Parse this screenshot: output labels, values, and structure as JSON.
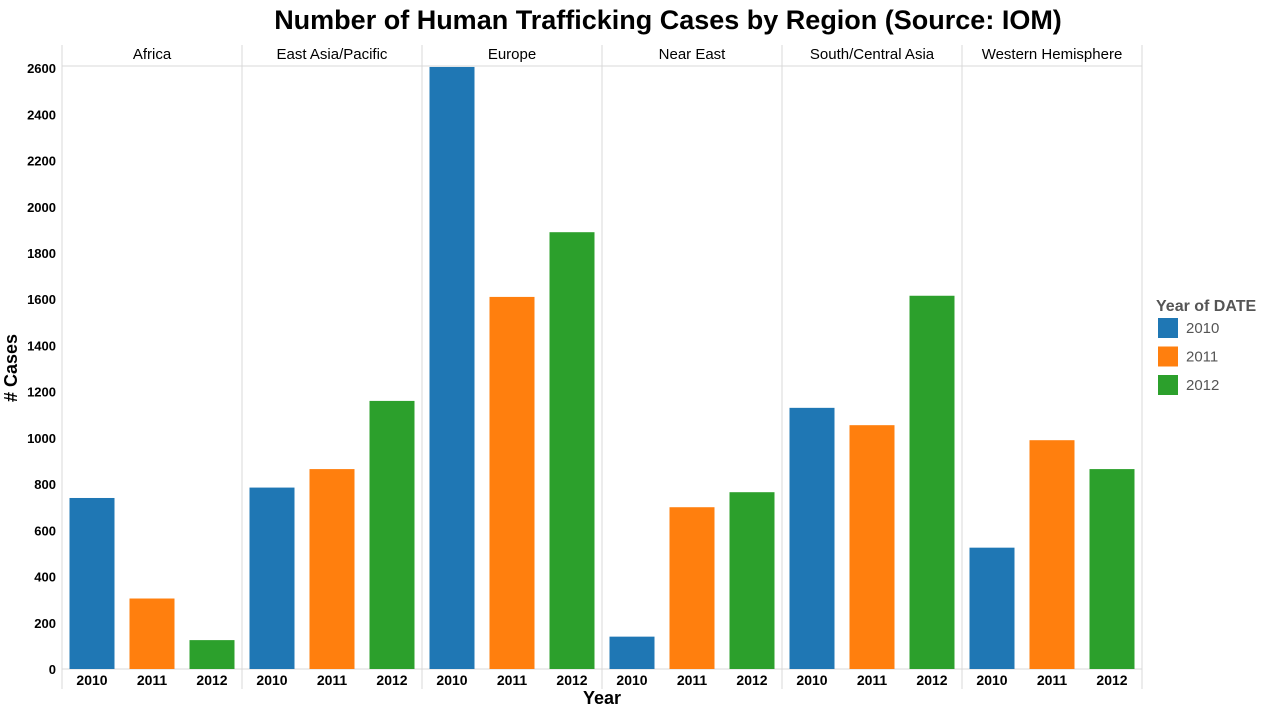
{
  "chart_data": {
    "type": "bar",
    "title": "Number of Human Trafficking Cases by Region (Source: IOM)",
    "xlabel": "Year",
    "ylabel": "# Cases",
    "ylim": [
      0,
      2700
    ],
    "yticks": [
      0,
      200,
      400,
      600,
      800,
      1000,
      1200,
      1400,
      1600,
      1800,
      2000,
      2200,
      2400,
      2600
    ],
    "grid": false,
    "legend": {
      "title": "Year of DATE",
      "position": "right",
      "entries": [
        {
          "label": "2010",
          "color": "#1f77b4"
        },
        {
          "label": "2011",
          "color": "#ff7f0e"
        },
        {
          "label": "2012",
          "color": "#2ca02c"
        }
      ]
    },
    "years": [
      "2010",
      "2011",
      "2012"
    ],
    "regions": [
      {
        "name": "Africa",
        "values": [
          740,
          305,
          125
        ]
      },
      {
        "name": "East Asia/Pacific",
        "values": [
          785,
          865,
          1160
        ]
      },
      {
        "name": "Europe",
        "values": [
          2605,
          1610,
          1890
        ]
      },
      {
        "name": "Near East",
        "values": [
          140,
          700,
          765
        ]
      },
      {
        "name": "South/Central Asia",
        "values": [
          1130,
          1055,
          1615
        ]
      },
      {
        "name": "Western Hemisphere",
        "values": [
          525,
          990,
          865
        ]
      }
    ]
  }
}
